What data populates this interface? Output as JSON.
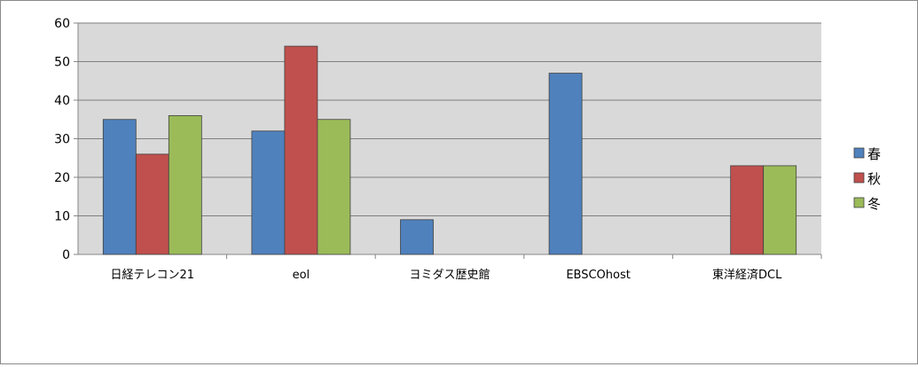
{
  "chart_data": {
    "type": "bar",
    "title": "",
    "xlabel": "",
    "ylabel": "",
    "ylim": [
      0,
      60
    ],
    "yticks": [
      0,
      10,
      20,
      30,
      40,
      50,
      60
    ],
    "categories": [
      "日経テレコン21",
      "eol",
      "ヨミダス歴史館",
      "EBSCOhost",
      "東洋経済DCL"
    ],
    "series": [
      {
        "name": "春",
        "color": "#4f81bd",
        "values": [
          35,
          32,
          9,
          47,
          0
        ]
      },
      {
        "name": "秋",
        "color": "#c0504d",
        "values": [
          26,
          54,
          0,
          0,
          23
        ]
      },
      {
        "name": "冬",
        "color": "#9bbb59",
        "values": [
          36,
          35,
          0,
          0,
          23
        ]
      }
    ],
    "grid": true,
    "legend_position": "right",
    "plot_background": "#d9d9d9"
  }
}
